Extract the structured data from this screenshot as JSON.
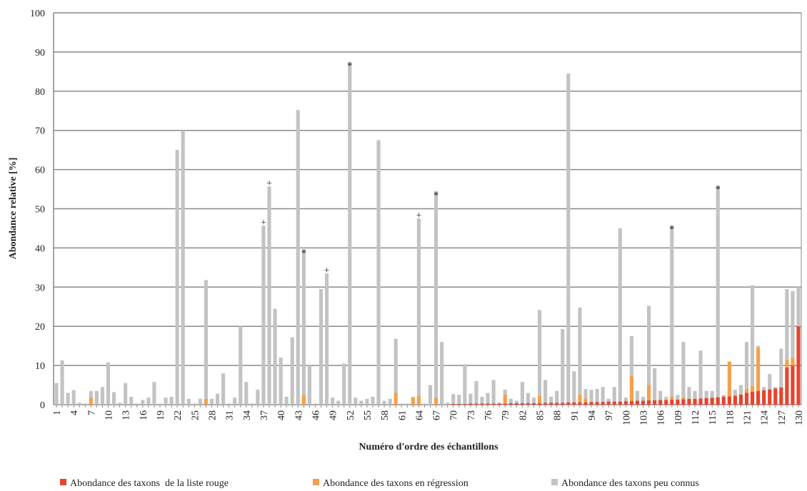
{
  "chart_data": {
    "type": "stacked_bar",
    "y_label": "Abondance relative [%]",
    "x_label": "Numéro d'ordre des échantillons",
    "categories": [
      "1",
      null,
      null,
      "4",
      null,
      null,
      "7",
      null,
      null,
      "10",
      null,
      null,
      "13",
      null,
      null,
      "16",
      null,
      null,
      "19",
      null,
      null,
      "22",
      null,
      null,
      "25",
      null,
      null,
      "28",
      null,
      null,
      "31",
      null,
      null,
      "34",
      null,
      null,
      "37",
      null,
      null,
      "40",
      null,
      null,
      "43",
      null,
      null,
      "46",
      null,
      null,
      "49",
      null,
      null,
      "52",
      null,
      null,
      "55",
      null,
      null,
      "58",
      null,
      null,
      "61",
      null,
      null,
      "64",
      null,
      null,
      "67",
      null,
      null,
      "70",
      null,
      null,
      "73",
      null,
      null,
      "76",
      null,
      null,
      "79",
      null,
      null,
      "82",
      null,
      null,
      "85",
      null,
      null,
      "88",
      null,
      null,
      "91",
      null,
      null,
      "94",
      null,
      null,
      "97",
      null,
      null,
      "100",
      null,
      null,
      "103",
      null,
      null,
      "106",
      null,
      null,
      "109",
      null,
      null,
      "112",
      null,
      null,
      "115",
      null,
      null,
      "118",
      null,
      null,
      "121",
      null,
      null,
      "124",
      null,
      null,
      "127",
      null,
      null,
      "130"
    ],
    "series": [
      {
        "name": "Abondance des taxons  de la liste rouge",
        "color": "#e8432c",
        "values": [
          0,
          0,
          0,
          0,
          0,
          0,
          0,
          0,
          0,
          0,
          0,
          0,
          0,
          0,
          0,
          0,
          0,
          0,
          0,
          0,
          0,
          0,
          0,
          0,
          0,
          0,
          0,
          0,
          0,
          0,
          0,
          0,
          0,
          0,
          0,
          0,
          0,
          0,
          0,
          0,
          0,
          0,
          0,
          0,
          0,
          0,
          0,
          0,
          0,
          0,
          0,
          0,
          0,
          0,
          0,
          0,
          0,
          0,
          0,
          0,
          0,
          0,
          0,
          0,
          0,
          0,
          0,
          0,
          0,
          0.2,
          0.2,
          0.2,
          0.3,
          0.3,
          0.3,
          0.3,
          0.3,
          0.3,
          0.3,
          0.4,
          0.4,
          0.4,
          0.4,
          0.4,
          0.4,
          0.5,
          0.5,
          0.5,
          0.5,
          0.6,
          0.6,
          0.6,
          0.6,
          0.7,
          0.7,
          0.7,
          0.8,
          0.8,
          0.8,
          0.9,
          0.9,
          1,
          1,
          1.1,
          1.1,
          1.2,
          1.2,
          1.3,
          1.3,
          1.4,
          1.5,
          1.5,
          1.6,
          1.7,
          1.8,
          1.9,
          2,
          2.1,
          2.3,
          2.6,
          3,
          3.3,
          3.5,
          3.7,
          3.9,
          4.1,
          4.4,
          9.5,
          10,
          20
        ]
      },
      {
        "name": "Abondance des taxons en régression",
        "color": "#f5a04a",
        "values": [
          0,
          0,
          0,
          0,
          0,
          0,
          1.8,
          0,
          0,
          0,
          0,
          0,
          0,
          0,
          0,
          0,
          0,
          0,
          0,
          0,
          0,
          0,
          0,
          0,
          0,
          0,
          1.5,
          0,
          0,
          0,
          0,
          0,
          0,
          0,
          0,
          0,
          0,
          0,
          0,
          0,
          0,
          0,
          0,
          2.5,
          0,
          0,
          0,
          0,
          0,
          0,
          0,
          0,
          0,
          0,
          0,
          0,
          0,
          0,
          0,
          3,
          0,
          0,
          1.8,
          2.2,
          0,
          0,
          1.8,
          0,
          0,
          0,
          0,
          0,
          0,
          0,
          0,
          0,
          0,
          0,
          2.3,
          0,
          0,
          0,
          0,
          0,
          1.8,
          0,
          0,
          0,
          0,
          0,
          0,
          2,
          1,
          0,
          0,
          0,
          0,
          0,
          0,
          0,
          6.6,
          0,
          0,
          3.9,
          0,
          0,
          0,
          0.8,
          0,
          0.5,
          0,
          0,
          0,
          0,
          0,
          0,
          0,
          8.9,
          0,
          0,
          1,
          1.5,
          11,
          0,
          0,
          0,
          0,
          2,
          2,
          0
        ]
      },
      {
        "name": "Abondance des taxons peu connus",
        "color": "#c3c3c3",
        "values": [
          5.5,
          11.3,
          3,
          3.7,
          0.5,
          0.3,
          1.7,
          3.5,
          4.5,
          10.8,
          3.2,
          0.5,
          5.5,
          2,
          0.3,
          1.2,
          1.8,
          5.8,
          0.3,
          1.8,
          2,
          65,
          70,
          1.5,
          0.3,
          1.5,
          30.3,
          1.5,
          2.8,
          8,
          0.3,
          1.8,
          20,
          5.8,
          0.3,
          3.8,
          45.7,
          55.7,
          24.5,
          12,
          2,
          17.2,
          75.2,
          37.2,
          10,
          0.3,
          29.5,
          33.5,
          1.8,
          1,
          10.5,
          87.5,
          1.8,
          1,
          1.5,
          2,
          67.5,
          1,
          1.5,
          13.8,
          0.3,
          0.3,
          0.2,
          45.3,
          0.3,
          5,
          52.7,
          16,
          0.5,
          2.5,
          2.3,
          10.1,
          2.5,
          5.7,
          1.7,
          2.7,
          6,
          0.2,
          1.2,
          1.1,
          0.6,
          5.4,
          2.6,
          1.4,
          22,
          5.8,
          1.5,
          3,
          18.8,
          83.9,
          7.9,
          22.2,
          2.4,
          3.1,
          3.3,
          3.8,
          0.7,
          3.7,
          44.2,
          0.9,
          10,
          2.5,
          1,
          20.2,
          8.2,
          2.3,
          0.8,
          43.7,
          1.2,
          14.1,
          3,
          2,
          12.2,
          1.8,
          1.7,
          54.1,
          0.5,
          0,
          1.5,
          2.4,
          12,
          25.7,
          0.5,
          0.8,
          3.9,
          0.4,
          9.9,
          18,
          17,
          10
        ]
      }
    ],
    "annotations": [
      {
        "text": "+",
        "index": 36
      },
      {
        "text": "+",
        "index": 37
      },
      {
        "text": "*",
        "index": 43
      },
      {
        "text": "+",
        "index": 47
      },
      {
        "text": "*",
        "index": 51
      },
      {
        "text": "+",
        "index": 63
      },
      {
        "text": "*",
        "index": 66
      },
      {
        "text": "*",
        "index": 107
      },
      {
        "text": "*",
        "index": 115
      }
    ],
    "ylim": [
      0,
      100
    ],
    "yticks": [
      0,
      10,
      20,
      30,
      40,
      50,
      60,
      70,
      80,
      90,
      100
    ],
    "grid": true
  }
}
